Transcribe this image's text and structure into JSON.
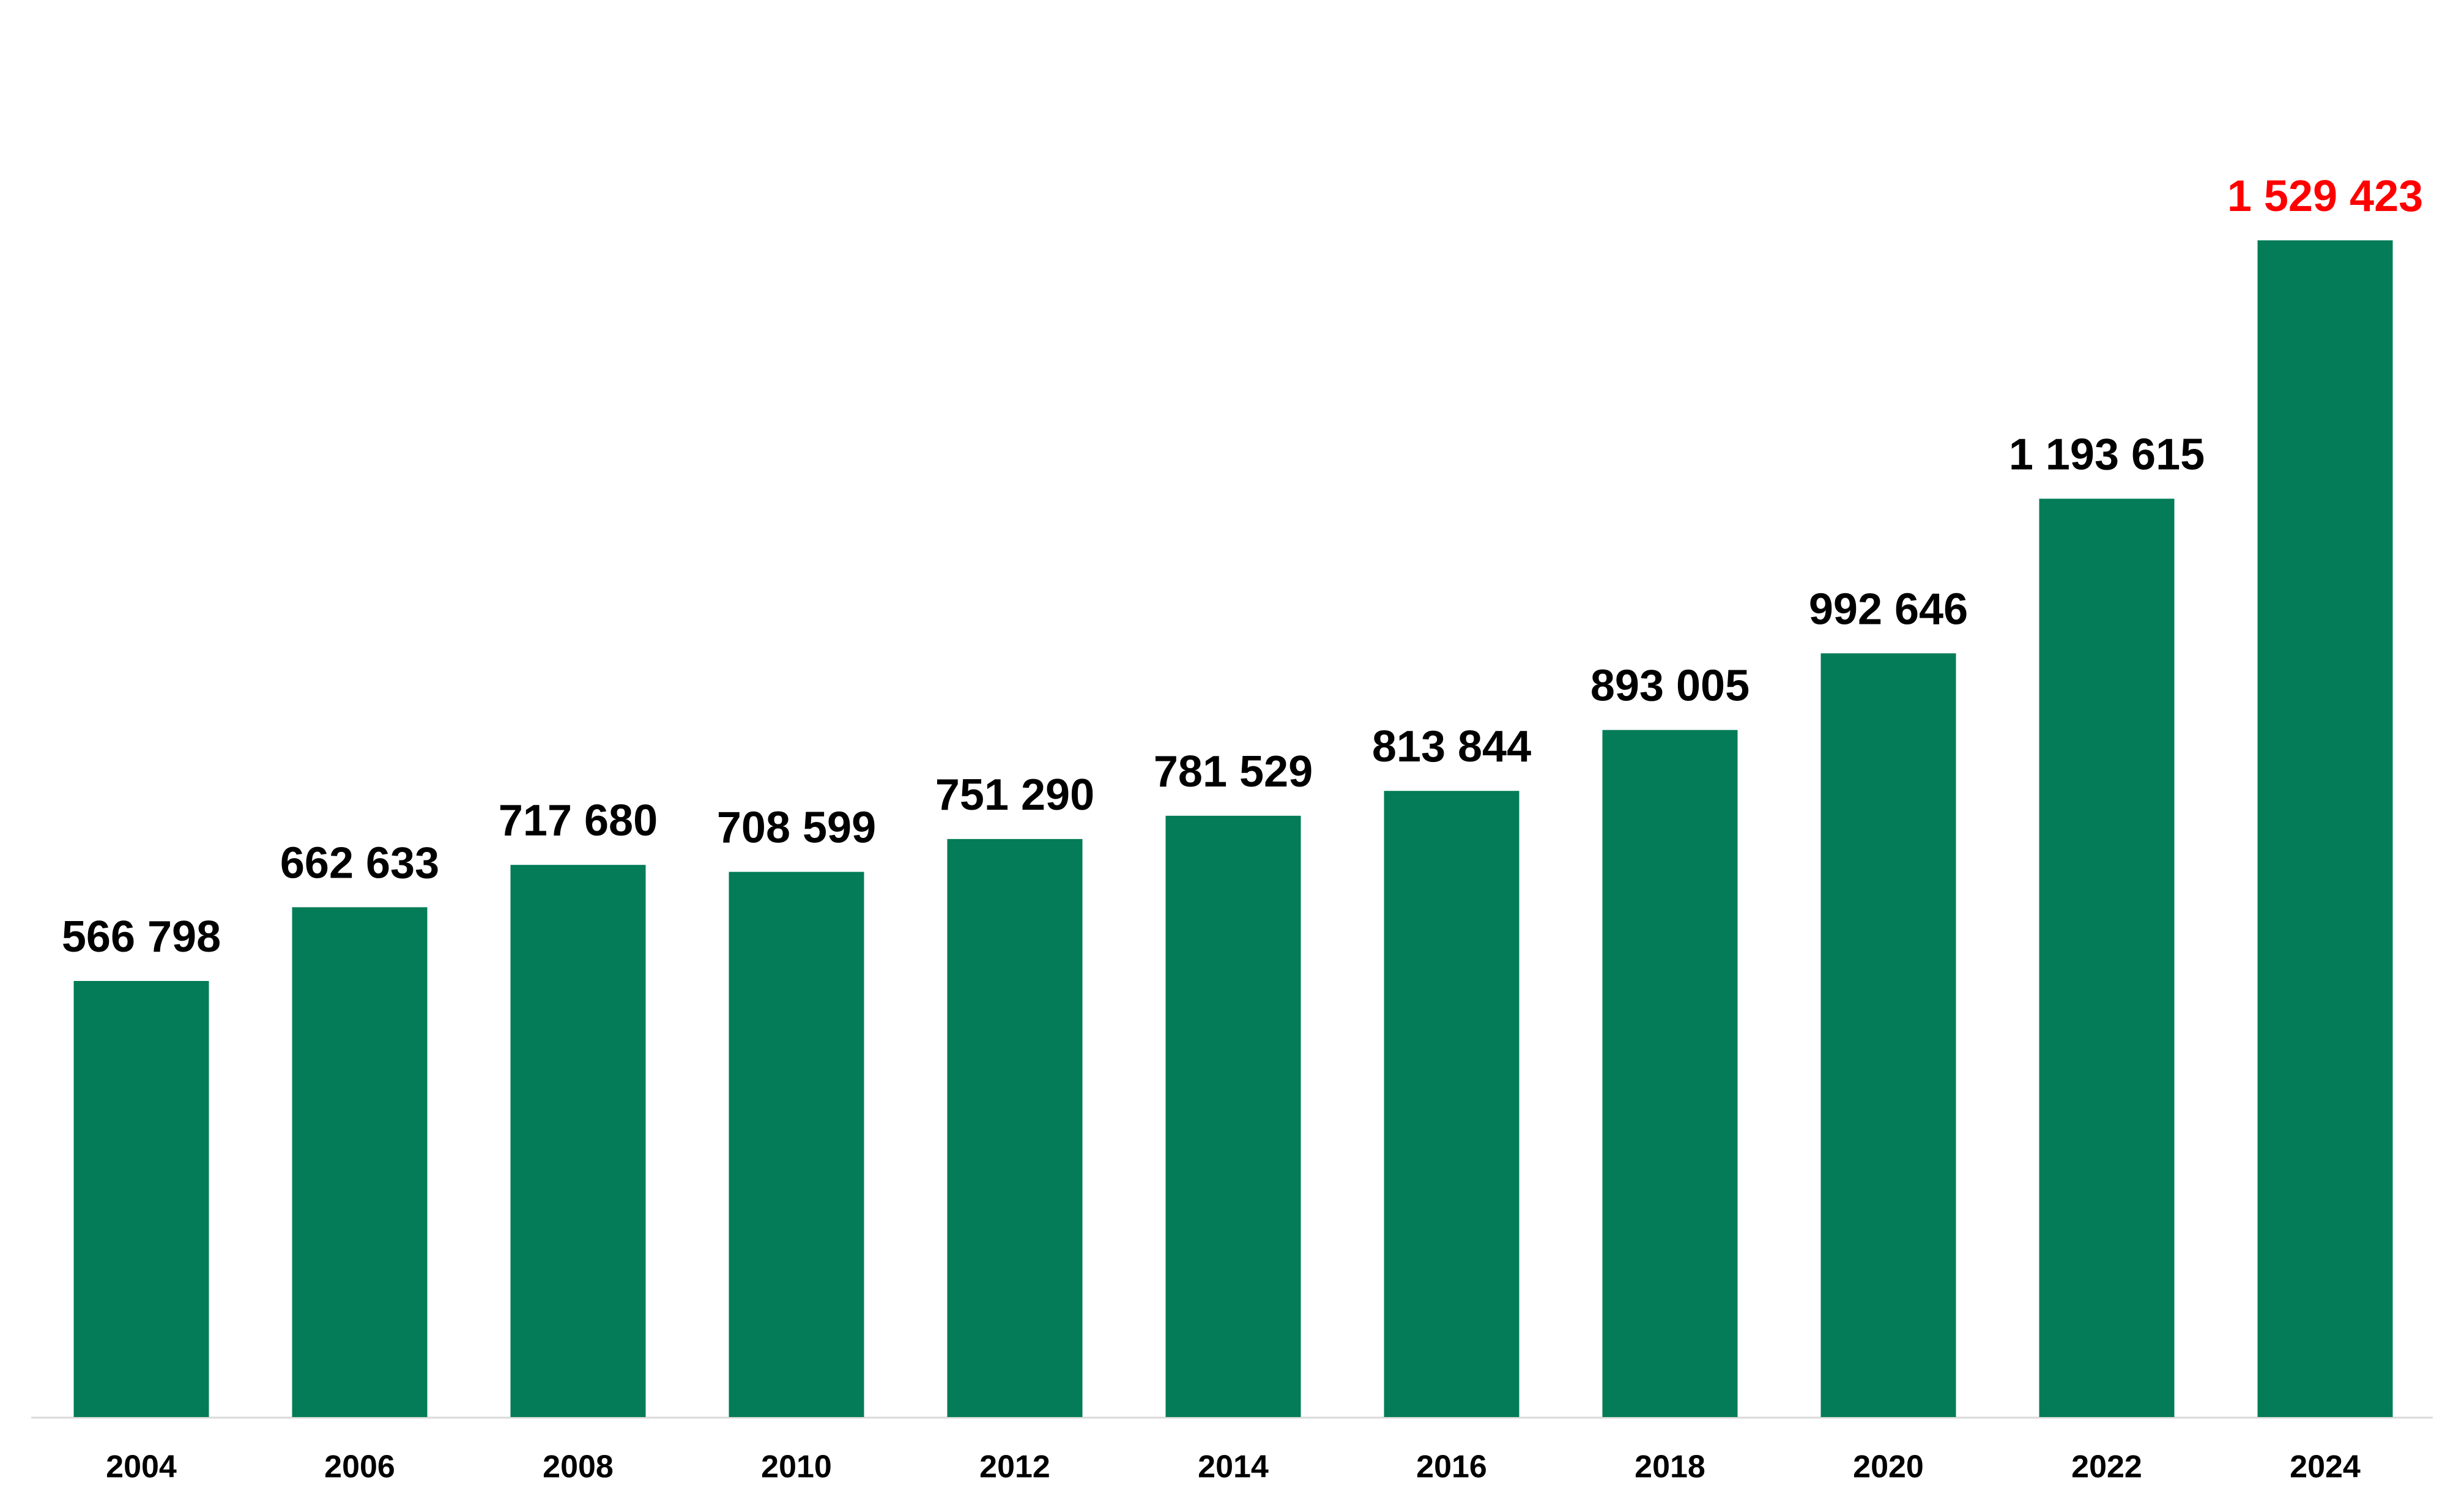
{
  "chart_data": {
    "type": "bar",
    "categories": [
      "2004",
      "2006",
      "2008",
      "2010",
      "2012",
      "2014",
      "2016",
      "2018",
      "2020",
      "2022",
      "2024"
    ],
    "values": [
      566798,
      662633,
      717680,
      708599,
      751290,
      781529,
      813844,
      893005,
      992646,
      1193615,
      1529423
    ],
    "value_labels": [
      "566 798",
      "662 633",
      "717 680",
      "708 599",
      "751 290",
      "781 529",
      "813 844",
      "893 005",
      "992 646",
      "1 193 615",
      "1 529 423"
    ],
    "value_label_colors": [
      "#000000",
      "#000000",
      "#000000",
      "#000000",
      "#000000",
      "#000000",
      "#000000",
      "#000000",
      "#000000",
      "#000000",
      "#ff0000"
    ],
    "color": "#037c57"
  }
}
